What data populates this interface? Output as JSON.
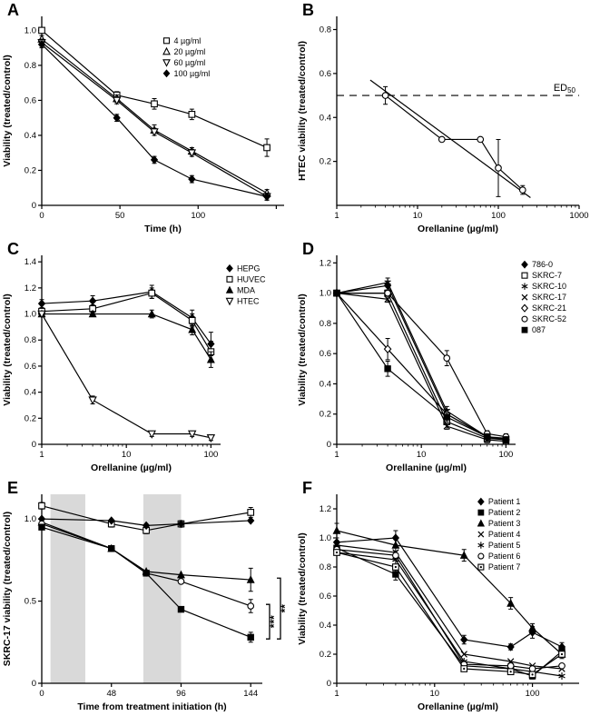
{
  "figure": {
    "background": "#ffffff",
    "line_color": "#000000",
    "band_color": "#d9d9d9"
  },
  "chart_data": [
    {
      "panel": "A",
      "type": "line",
      "xlabel": "Time (h)",
      "ylabel": "Viability (treated/control)",
      "xscale": "linear",
      "xlim": [
        0,
        155
      ],
      "xticks": [
        0,
        50,
        100,
        150
      ],
      "xtick_labels": [
        "0",
        "50",
        "100",
        ""
      ],
      "ylim": [
        0,
        1.08
      ],
      "yticks": [
        0,
        0.2,
        0.4,
        0.6,
        0.8,
        1.0
      ],
      "ytick_labels": [
        "0",
        "0.2",
        "0.4",
        "0.6",
        "0.8",
        "1.0"
      ],
      "legend": {
        "pos": "inside",
        "fx": 0.5,
        "fy": 0.1
      },
      "series": [
        {
          "name": "4 µg/ml",
          "marker": "square-open",
          "x": [
            0,
            48,
            72,
            96,
            144
          ],
          "y": [
            1.0,
            0.63,
            0.58,
            0.52,
            0.33
          ],
          "err": [
            0,
            0.02,
            0.03,
            0.03,
            0.05
          ]
        },
        {
          "name": "20 µg/ml",
          "marker": "triangle-up-open",
          "x": [
            0,
            48,
            72,
            96,
            144
          ],
          "y": [
            0.95,
            0.61,
            0.43,
            0.31,
            0.07
          ],
          "err": [
            0.02,
            0.02,
            0.03,
            0.02,
            0.02
          ]
        },
        {
          "name": "60 µg/ml",
          "marker": "triangle-down-open",
          "x": [
            0,
            48,
            72,
            96,
            144
          ],
          "y": [
            0.93,
            0.6,
            0.42,
            0.3,
            0.05
          ],
          "err": [
            0.02,
            0.02,
            0.02,
            0.02,
            0.02
          ]
        },
        {
          "name": "100 µg/ml",
          "marker": "diamond-filled",
          "x": [
            0,
            48,
            72,
            96,
            144
          ],
          "y": [
            0.92,
            0.5,
            0.26,
            0.15,
            0.05
          ],
          "err": [
            0.02,
            0.02,
            0.02,
            0.02,
            0.02
          ]
        }
      ]
    },
    {
      "panel": "B",
      "type": "line",
      "xlabel": "Orellanine (µg/ml)",
      "ylabel": "HTEC viability (treated/control)",
      "xscale": "log",
      "xlim": [
        1,
        1000
      ],
      "xticks": [
        1,
        10,
        100,
        1000
      ],
      "xtick_labels": [
        "1",
        "10",
        "100",
        "1000"
      ],
      "ylim": [
        0,
        0.86
      ],
      "yticks": [
        0.2,
        0.4,
        0.6,
        0.8
      ],
      "ytick_labels": [
        "0.2",
        "0.4",
        "0.6",
        "0.8"
      ],
      "hlines": [
        {
          "y": 0.5,
          "dash": true,
          "label_main": "ED",
          "label_sub": "50"
        }
      ],
      "series": [
        {
          "name": "trend",
          "marker": "none",
          "x": [
            2.6,
            250
          ],
          "y": [
            0.57,
            0.035
          ]
        },
        {
          "name": "HTEC",
          "marker": "circle-open",
          "x": [
            4,
            20,
            60,
            100,
            200
          ],
          "y": [
            0.5,
            0.3,
            0.3,
            0.17,
            0.07
          ],
          "err": [
            0.04,
            0,
            0,
            0.13,
            0.02
          ]
        }
      ]
    },
    {
      "panel": "C",
      "type": "line",
      "xlabel": "Orellanine (µg/ml)",
      "ylabel": "Viability (treated/control)",
      "xscale": "log",
      "xlim": [
        1,
        130
      ],
      "xticks": [
        1,
        10,
        100
      ],
      "xtick_labels": [
        "1",
        "10",
        "100"
      ],
      "ylim": [
        0,
        1.45
      ],
      "yticks": [
        0,
        0.2,
        0.4,
        0.6,
        0.8,
        1.0,
        1.2,
        1.4
      ],
      "ytick_labels": [
        "0",
        "0.2",
        "0.4",
        "0.6",
        "0.8",
        "1.0",
        "1.2",
        "1.4"
      ],
      "legend": {
        "pos": "right",
        "fy": 0.04
      },
      "series": [
        {
          "name": "HEPG",
          "marker": "diamond-filled",
          "x": [
            1,
            4,
            20,
            60,
            100
          ],
          "y": [
            1.08,
            1.1,
            1.17,
            0.97,
            0.77
          ],
          "err": [
            0.03,
            0.04,
            0.05,
            0.06,
            0.09
          ]
        },
        {
          "name": "HUVEC",
          "marker": "square-open",
          "x": [
            1,
            4,
            20,
            60,
            100
          ],
          "y": [
            1.02,
            1.04,
            1.16,
            0.95,
            0.71
          ],
          "err": [
            0.02,
            0.03,
            0.04,
            0.05,
            0.08
          ]
        },
        {
          "name": "MDA",
          "marker": "triangle-up-filled",
          "x": [
            1,
            4,
            20,
            60,
            100
          ],
          "y": [
            1.0,
            1.0,
            1.0,
            0.88,
            0.65
          ],
          "err": [
            0.02,
            0.02,
            0.03,
            0.04,
            0.06
          ]
        },
        {
          "name": "HTEC",
          "marker": "triangle-down-open",
          "x": [
            1,
            4,
            20,
            60,
            100
          ],
          "y": [
            1.0,
            0.34,
            0.08,
            0.08,
            0.05
          ],
          "err": [
            0.02,
            0.03,
            0.02,
            0.02,
            0.02
          ]
        }
      ]
    },
    {
      "panel": "D",
      "type": "line",
      "xlabel": "Orellanine (µg/ml)",
      "ylabel": "Viability (treated/control)",
      "xscale": "log",
      "xlim": [
        1,
        130
      ],
      "xticks": [
        1,
        10,
        100
      ],
      "xtick_labels": [
        "1",
        "10",
        "100"
      ],
      "ylim": [
        0,
        1.25
      ],
      "yticks": [
        0,
        0.2,
        0.4,
        0.6,
        0.8,
        1.0,
        1.2
      ],
      "ytick_labels": [
        "0",
        "0.2",
        "0.4",
        "0.6",
        "0.8",
        "1.0",
        "1.2"
      ],
      "legend": {
        "pos": "right",
        "fy": 0.02
      },
      "series": [
        {
          "name": "786-0",
          "marker": "diamond-filled",
          "x": [
            1,
            4,
            20,
            60,
            100
          ],
          "y": [
            1.0,
            1.05,
            0.2,
            0.05,
            0.03
          ],
          "err": [
            0,
            0.03,
            0.03,
            0.02,
            0.02
          ]
        },
        {
          "name": "SKRC-7",
          "marker": "square-open",
          "x": [
            1,
            4,
            20,
            60,
            100
          ],
          "y": [
            1.0,
            1.0,
            0.15,
            0.04,
            0.03
          ],
          "err": [
            0,
            0.02,
            0.02,
            0.02,
            0.02
          ]
        },
        {
          "name": "SKRC-10",
          "marker": "star",
          "x": [
            1,
            4,
            20,
            60,
            100
          ],
          "y": [
            1.0,
            1.07,
            0.22,
            0.05,
            0.04
          ],
          "err": [
            0,
            0.03,
            0.03,
            0.02,
            0.02
          ]
        },
        {
          "name": "SKRC-17",
          "marker": "x",
          "x": [
            1,
            4,
            20,
            60,
            100
          ],
          "y": [
            1.0,
            0.96,
            0.12,
            0.03,
            0.02
          ],
          "err": [
            0,
            0.02,
            0.02,
            0.02,
            0.02
          ]
        },
        {
          "name": "SKRC-21",
          "marker": "diamond-open",
          "x": [
            1,
            4,
            20,
            60,
            100
          ],
          "y": [
            1.0,
            0.63,
            0.2,
            0.05,
            0.03
          ],
          "err": [
            0,
            0.07,
            0.03,
            0.02,
            0.02
          ]
        },
        {
          "name": "SKRC-52",
          "marker": "circle-open",
          "x": [
            1,
            4,
            20,
            60,
            100
          ],
          "y": [
            1.0,
            1.0,
            0.57,
            0.07,
            0.05
          ],
          "err": [
            0,
            0.02,
            0.05,
            0.02,
            0.02
          ]
        },
        {
          "name": "087",
          "marker": "square-filled",
          "x": [
            1,
            4,
            20,
            60,
            100
          ],
          "y": [
            1.0,
            0.5,
            0.18,
            0.05,
            0.03
          ],
          "err": [
            0,
            0.05,
            0.03,
            0.02,
            0.02
          ]
        }
      ]
    },
    {
      "panel": "E",
      "type": "line",
      "xlabel": "Time from treatment initiation (h)",
      "ylabel": "SKRC-17 viability (treated/control)",
      "xscale": "linear",
      "xlim": [
        0,
        152
      ],
      "xticks": [
        0,
        48,
        96,
        144
      ],
      "xtick_labels": [
        "0",
        "48",
        "96",
        "144"
      ],
      "ylim": [
        0,
        1.15
      ],
      "yticks": [
        0,
        0.5,
        1.0
      ],
      "ytick_labels": [
        "0",
        "0.5",
        "1.0"
      ],
      "vbands": [
        {
          "x0": 6,
          "x1": 30,
          "color": "#d9d9d9"
        },
        {
          "x0": 70,
          "x1": 96,
          "color": "#d9d9d9"
        }
      ],
      "brackets": [
        {
          "y0": 0.27,
          "y1": 0.48,
          "dx": 8,
          "label": "***"
        },
        {
          "y0": 0.27,
          "y1": 0.64,
          "dx": 20,
          "label": "**"
        }
      ],
      "series": [
        {
          "name": "open-square",
          "marker": "square-open",
          "x": [
            0,
            48,
            72,
            96,
            144
          ],
          "y": [
            1.08,
            0.97,
            0.93,
            0.97,
            1.04
          ],
          "err": [
            0.02,
            0.02,
            0.02,
            0.02,
            0.03
          ]
        },
        {
          "name": "filled-diamond",
          "marker": "diamond-filled",
          "x": [
            0,
            48,
            72,
            96,
            144
          ],
          "y": [
            1.0,
            0.99,
            0.96,
            0.97,
            0.99
          ],
          "err": [
            0,
            0,
            0,
            0,
            0
          ]
        },
        {
          "name": "filled-triangle",
          "marker": "triangle-up-filled",
          "x": [
            0,
            48,
            72,
            96,
            144
          ],
          "y": [
            0.98,
            0.82,
            0.68,
            0.66,
            0.63
          ],
          "err": [
            0,
            0,
            0,
            0,
            0.07
          ]
        },
        {
          "name": "open-circle",
          "marker": "circle-open",
          "x": [
            0,
            48,
            72,
            96,
            144
          ],
          "y": [
            0.97,
            0.82,
            0.67,
            0.62,
            0.47
          ],
          "err": [
            0,
            0,
            0,
            0,
            0.04
          ]
        },
        {
          "name": "filled-square",
          "marker": "square-filled",
          "x": [
            0,
            48,
            72,
            96,
            144
          ],
          "y": [
            0.95,
            0.82,
            0.67,
            0.45,
            0.28
          ],
          "err": [
            0,
            0,
            0,
            0,
            0.03
          ]
        }
      ]
    },
    {
      "panel": "F",
      "type": "line",
      "xlabel": "Orellanine (µg/ml)",
      "ylabel": "Viability (treated/control)",
      "xscale": "log",
      "xlim": [
        1,
        300
      ],
      "xticks": [
        1,
        10,
        100
      ],
      "xtick_labels": [
        "1",
        "10",
        "100"
      ],
      "ylim": [
        0,
        1.3
      ],
      "yticks": [
        0,
        0.2,
        0.4,
        0.6,
        0.8,
        1.0,
        1.2
      ],
      "ytick_labels": [
        "0",
        "0.2",
        "0.4",
        "0.6",
        "0.8",
        "1.0",
        "1.2"
      ],
      "legend": {
        "pos": "inside",
        "fx": 0.58,
        "fy": 0.01
      },
      "series": [
        {
          "name": "Patient 1",
          "marker": "diamond-filled",
          "x": [
            1,
            4,
            20,
            60,
            100,
            200
          ],
          "y": [
            0.97,
            1.0,
            0.3,
            0.25,
            0.35,
            0.25
          ],
          "err": [
            0.03,
            0.05,
            0.03,
            0.02,
            0.04,
            0.03
          ]
        },
        {
          "name": "Patient 2",
          "marker": "square-filled",
          "x": [
            1,
            4,
            20,
            60,
            100,
            200
          ],
          "y": [
            0.93,
            0.75,
            0.12,
            0.1,
            0.05,
            0.22
          ],
          "err": [
            0.03,
            0.04,
            0.02,
            0.02,
            0.02,
            0.03
          ]
        },
        {
          "name": "Patient 3",
          "marker": "triangle-up-filled",
          "x": [
            1,
            4,
            20,
            60,
            100,
            200
          ],
          "y": [
            1.05,
            0.95,
            0.88,
            0.55,
            0.38,
            0.2
          ],
          "err": [
            0.05,
            0.04,
            0.04,
            0.04,
            0.03,
            0.03
          ]
        },
        {
          "name": "Patient 4",
          "marker": "x",
          "x": [
            1,
            4,
            20,
            60,
            100,
            200
          ],
          "y": [
            0.95,
            0.9,
            0.2,
            0.15,
            0.12,
            0.1
          ],
          "err": [
            0,
            0,
            0,
            0,
            0,
            0
          ]
        },
        {
          "name": "Patient 5",
          "marker": "star",
          "x": [
            1,
            4,
            20,
            60,
            100,
            200
          ],
          "y": [
            0.9,
            0.85,
            0.15,
            0.1,
            0.08,
            0.05
          ],
          "err": [
            0,
            0,
            0,
            0,
            0,
            0
          ]
        },
        {
          "name": "Patient 6",
          "marker": "circle-open",
          "x": [
            1,
            4,
            20,
            60,
            100,
            200
          ],
          "y": [
            0.92,
            0.88,
            0.13,
            0.12,
            0.1,
            0.12
          ],
          "err": [
            0,
            0,
            0,
            0,
            0,
            0
          ]
        },
        {
          "name": "Patient 7",
          "marker": "square-dot",
          "x": [
            1,
            4,
            20,
            60,
            100,
            200
          ],
          "y": [
            0.9,
            0.8,
            0.1,
            0.08,
            0.06,
            0.2
          ],
          "err": [
            0,
            0,
            0,
            0,
            0,
            0
          ]
        }
      ]
    }
  ]
}
